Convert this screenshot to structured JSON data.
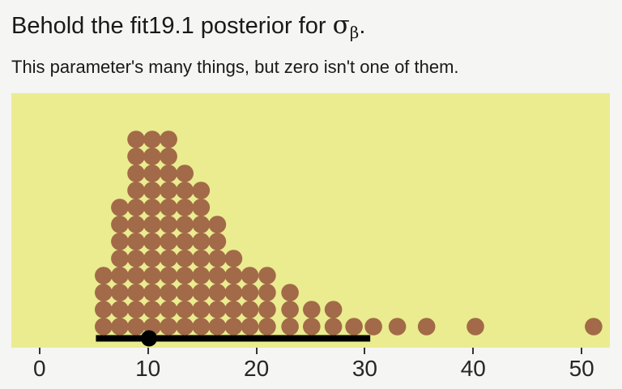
{
  "title": {
    "prefix": "Behold the fit19.1 posterior for ",
    "sigma": "σ",
    "sigma_sub": "β",
    "suffix": "."
  },
  "subtitle": "This parameter's many things, but zero isn't one of them.",
  "colors": {
    "page_bg": "#F5F5F4",
    "panel_bg": "#EAEC8F",
    "dot": "#A26A48",
    "interval": "#000000",
    "point": "#000000",
    "axis_label": "#262626",
    "tick": "#333333",
    "title": "#191919",
    "subtitle": "#191919"
  },
  "chart_data": {
    "type": "scatter",
    "subtype": "quantile-dotplot",
    "title": "Behold the fit19.1 posterior for σβ.",
    "subtitle": "This parameter's many things, but zero isn't one of them.",
    "xlabel": "",
    "ylabel": "",
    "n_dots": 100,
    "x_domain": [
      -2.6,
      52.6
    ],
    "x_ticks": [
      0,
      10,
      20,
      30,
      40,
      50
    ],
    "grid": "off",
    "legend": "none",
    "dot_columns": [
      {
        "x": 5.9,
        "count": 4
      },
      {
        "x": 7.4,
        "count": 8
      },
      {
        "x": 8.9,
        "count": 12
      },
      {
        "x": 10.4,
        "count": 12
      },
      {
        "x": 11.9,
        "count": 12
      },
      {
        "x": 13.4,
        "count": 10
      },
      {
        "x": 14.9,
        "count": 9
      },
      {
        "x": 16.4,
        "count": 7
      },
      {
        "x": 17.9,
        "count": 5
      },
      {
        "x": 19.4,
        "count": 4
      },
      {
        "x": 21.0,
        "count": 4
      },
      {
        "x": 23.1,
        "count": 3
      },
      {
        "x": 25.1,
        "count": 2
      },
      {
        "x": 27.1,
        "count": 2
      },
      {
        "x": 29.0,
        "count": 1
      },
      {
        "x": 30.8,
        "count": 1
      },
      {
        "x": 33.0,
        "count": 1
      },
      {
        "x": 35.7,
        "count": 1
      },
      {
        "x": 40.2,
        "count": 1
      },
      {
        "x": 51.1,
        "count": 1
      }
    ],
    "point_interval": {
      "point": 10.1,
      "lower": 5.2,
      "upper": 30.5
    }
  }
}
